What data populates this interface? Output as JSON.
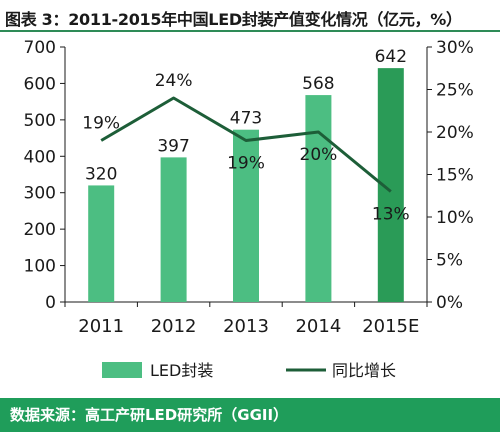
{
  "title": "图表 3：2011-2015年中国LED封装产值变化情况（亿元，%）",
  "source": "数据来源：高工产研LED研究所（GGII）",
  "colors": {
    "bar": "#4cbe82",
    "bar_estimate": "#2a9b57",
    "line": "#1d5e38",
    "axis": "#1a1a1a",
    "text": "#1a1a1a",
    "source_bg": "#1f9d5a"
  },
  "chart_data": {
    "type": "bar",
    "categories": [
      "2011",
      "2012",
      "2013",
      "2014",
      "2015E"
    ],
    "series": [
      {
        "name": "LED封装",
        "type": "bar",
        "axis": "left",
        "values": [
          320,
          397,
          473,
          568,
          642
        ],
        "labels": [
          "320",
          "397",
          "473",
          "568",
          "642"
        ]
      },
      {
        "name": "同比增长",
        "type": "line",
        "axis": "right",
        "values": [
          19,
          24,
          19,
          20,
          13
        ],
        "labels": [
          "19%",
          "24%",
          "19%",
          "20%",
          "13%"
        ]
      }
    ],
    "y_left": {
      "lim": [
        0,
        700
      ],
      "ticks": [
        "0",
        "100",
        "200",
        "300",
        "400",
        "500",
        "600",
        "700"
      ]
    },
    "y_right": {
      "lim": [
        0,
        30
      ],
      "ticks": [
        "0%",
        "5%",
        "10%",
        "15%",
        "20%",
        "25%",
        "30%"
      ]
    },
    "grid": false,
    "legend_position": "bottom"
  }
}
